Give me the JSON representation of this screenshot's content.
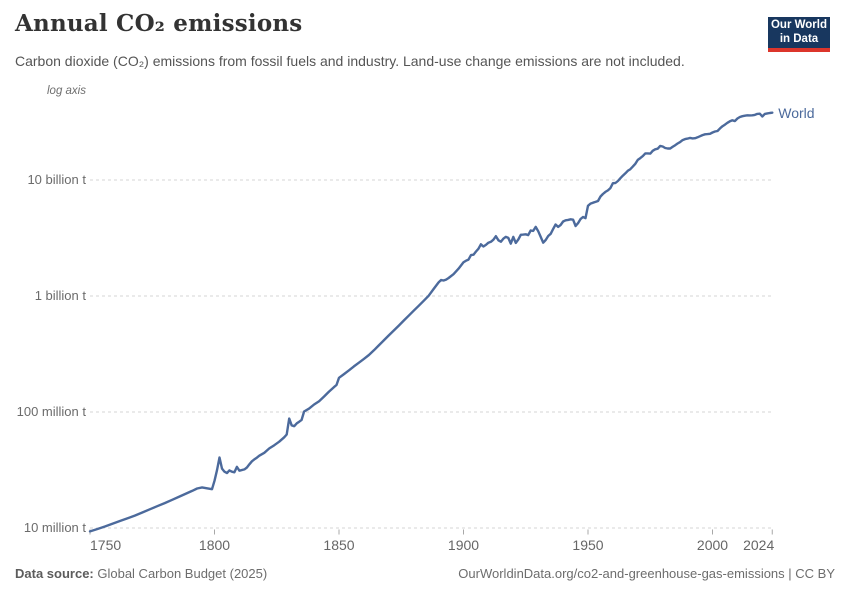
{
  "header": {
    "title": "Annual CO₂ emissions",
    "subtitle": "Carbon dioxide (CO₂) emissions from fossil fuels and industry. Land-use change emissions are not included.",
    "logo": {
      "line1": "Our World",
      "line2": "in Data"
    }
  },
  "chart": {
    "axis_note": "log axis"
  },
  "chart_data": {
    "type": "line",
    "title": "Annual CO₂ emissions",
    "log_scale": true,
    "x_range": [
      1750,
      2024
    ],
    "x_ticks": [
      1750,
      1800,
      1850,
      1900,
      1950,
      2000,
      2024
    ],
    "y_ticks": [
      {
        "value": 10,
        "label": "10 million t"
      },
      {
        "value": 100,
        "label": "100 million t"
      },
      {
        "value": 1000,
        "label": "1 billion t"
      },
      {
        "value": 10000,
        "label": "10 billion t"
      }
    ],
    "values_unit": "million tonnes of CO₂",
    "grid": "dashed horizontal",
    "legend_position": "end-of-line label",
    "series": [
      {
        "name": "World",
        "color": "#4C6A9C",
        "points": [
          [
            1750,
            9.35
          ],
          [
            1753,
            9.8
          ],
          [
            1756,
            10.3
          ],
          [
            1759,
            10.9
          ],
          [
            1762,
            11.5
          ],
          [
            1765,
            12.1
          ],
          [
            1768,
            12.8
          ],
          [
            1771,
            13.6
          ],
          [
            1774,
            14.5
          ],
          [
            1777,
            15.4
          ],
          [
            1780,
            16.4
          ],
          [
            1783,
            17.5
          ],
          [
            1786,
            18.7
          ],
          [
            1789,
            20
          ],
          [
            1791,
            20.9
          ],
          [
            1793,
            21.9
          ],
          [
            1795,
            22.4
          ],
          [
            1797,
            22
          ],
          [
            1799,
            21.6
          ],
          [
            1800,
            25.5
          ],
          [
            1801,
            31.5
          ],
          [
            1802,
            40.5
          ],
          [
            1803,
            32.5
          ],
          [
            1804,
            30.6
          ],
          [
            1805,
            29.8
          ],
          [
            1806,
            31.4
          ],
          [
            1807,
            30.6
          ],
          [
            1808,
            30.2
          ],
          [
            1809,
            33.6
          ],
          [
            1810,
            31.2
          ],
          [
            1812,
            32
          ],
          [
            1813,
            33.2
          ],
          [
            1814,
            35.4
          ],
          [
            1815,
            37.6
          ],
          [
            1816,
            39
          ],
          [
            1817,
            40.4
          ],
          [
            1818,
            42
          ],
          [
            1820,
            44.5
          ],
          [
            1822,
            48.6
          ],
          [
            1824,
            51.7
          ],
          [
            1826,
            55.5
          ],
          [
            1828,
            60.5
          ],
          [
            1829,
            64
          ],
          [
            1830,
            87.8
          ],
          [
            1831,
            76.7
          ],
          [
            1832,
            75.4
          ],
          [
            1833,
            79.7
          ],
          [
            1834,
            82.5
          ],
          [
            1835,
            85.5
          ],
          [
            1836,
            101
          ],
          [
            1838,
            107
          ],
          [
            1840,
            116
          ],
          [
            1842,
            124
          ],
          [
            1844,
            136
          ],
          [
            1846,
            150
          ],
          [
            1848,
            164
          ],
          [
            1849,
            171
          ],
          [
            1850,
            197
          ],
          [
            1852,
            212
          ],
          [
            1854,
            229
          ],
          [
            1856,
            247
          ],
          [
            1858,
            266
          ],
          [
            1860,
            287
          ],
          [
            1862,
            310
          ],
          [
            1864,
            340
          ],
          [
            1866,
            375
          ],
          [
            1868,
            414
          ],
          [
            1870,
            457
          ],
          [
            1872,
            504
          ],
          [
            1874,
            556
          ],
          [
            1876,
            614
          ],
          [
            1878,
            677
          ],
          [
            1880,
            747
          ],
          [
            1882,
            824
          ],
          [
            1884,
            909
          ],
          [
            1886,
            1003
          ],
          [
            1888,
            1150
          ],
          [
            1890,
            1310
          ],
          [
            1891,
            1375
          ],
          [
            1892,
            1360
          ],
          [
            1893,
            1385
          ],
          [
            1894,
            1430
          ],
          [
            1896,
            1540
          ],
          [
            1898,
            1720
          ],
          [
            1900,
            1952
          ],
          [
            1901,
            2015
          ],
          [
            1902,
            2060
          ],
          [
            1903,
            2250
          ],
          [
            1904,
            2270
          ],
          [
            1905,
            2420
          ],
          [
            1906,
            2550
          ],
          [
            1907,
            2790
          ],
          [
            1908,
            2670
          ],
          [
            1909,
            2760
          ],
          [
            1910,
            2880
          ],
          [
            1911,
            2930
          ],
          [
            1912,
            3060
          ],
          [
            1913,
            3280
          ],
          [
            1914,
            3020
          ],
          [
            1915,
            2940
          ],
          [
            1916,
            3120
          ],
          [
            1917,
            3240
          ],
          [
            1918,
            3170
          ],
          [
            1919,
            2830
          ],
          [
            1920,
            3230
          ],
          [
            1921,
            2870
          ],
          [
            1922,
            3070
          ],
          [
            1923,
            3370
          ],
          [
            1924,
            3380
          ],
          [
            1925,
            3400
          ],
          [
            1926,
            3350
          ],
          [
            1927,
            3670
          ],
          [
            1928,
            3640
          ],
          [
            1929,
            3940
          ],
          [
            1930,
            3620
          ],
          [
            1931,
            3230
          ],
          [
            1932,
            2880
          ],
          [
            1933,
            3040
          ],
          [
            1934,
            3290
          ],
          [
            1935,
            3440
          ],
          [
            1936,
            3770
          ],
          [
            1937,
            4130
          ],
          [
            1938,
            3940
          ],
          [
            1939,
            4090
          ],
          [
            1940,
            4390
          ],
          [
            1941,
            4490
          ],
          [
            1942,
            4530
          ],
          [
            1943,
            4580
          ],
          [
            1944,
            4550
          ],
          [
            1945,
            4010
          ],
          [
            1946,
            4240
          ],
          [
            1947,
            4600
          ],
          [
            1948,
            4800
          ],
          [
            1949,
            4690
          ],
          [
            1950,
            5990
          ],
          [
            1951,
            6260
          ],
          [
            1952,
            6370
          ],
          [
            1953,
            6480
          ],
          [
            1954,
            6590
          ],
          [
            1955,
            7210
          ],
          [
            1956,
            7580
          ],
          [
            1957,
            7900
          ],
          [
            1958,
            8130
          ],
          [
            1959,
            8520
          ],
          [
            1960,
            9390
          ],
          [
            1961,
            9420
          ],
          [
            1962,
            9810
          ],
          [
            1963,
            10370
          ],
          [
            1964,
            10910
          ],
          [
            1965,
            11430
          ],
          [
            1966,
            12000
          ],
          [
            1967,
            12380
          ],
          [
            1968,
            13040
          ],
          [
            1969,
            13790
          ],
          [
            1970,
            14900
          ],
          [
            1971,
            15460
          ],
          [
            1972,
            16080
          ],
          [
            1973,
            16950
          ],
          [
            1974,
            16970
          ],
          [
            1975,
            16880
          ],
          [
            1976,
            17850
          ],
          [
            1977,
            18410
          ],
          [
            1978,
            18610
          ],
          [
            1979,
            19660
          ],
          [
            1980,
            19460
          ],
          [
            1981,
            18860
          ],
          [
            1982,
            18680
          ],
          [
            1983,
            18680
          ],
          [
            1984,
            19340
          ],
          [
            1985,
            19960
          ],
          [
            1986,
            20640
          ],
          [
            1987,
            21220
          ],
          [
            1988,
            22080
          ],
          [
            1989,
            22500
          ],
          [
            1990,
            22740
          ],
          [
            1991,
            23050
          ],
          [
            1992,
            22830
          ],
          [
            1993,
            22910
          ],
          [
            1994,
            23320
          ],
          [
            1995,
            23840
          ],
          [
            1996,
            24390
          ],
          [
            1997,
            24790
          ],
          [
            1998,
            24880
          ],
          [
            1999,
            25000
          ],
          [
            2000,
            25650
          ],
          [
            2001,
            26200
          ],
          [
            2002,
            26460
          ],
          [
            2003,
            27840
          ],
          [
            2004,
            29070
          ],
          [
            2005,
            30020
          ],
          [
            2006,
            31110
          ],
          [
            2007,
            32040
          ],
          [
            2008,
            32690
          ],
          [
            2009,
            32170
          ],
          [
            2010,
            33900
          ],
          [
            2011,
            34950
          ],
          [
            2012,
            35470
          ],
          [
            2013,
            35830
          ],
          [
            2014,
            36110
          ],
          [
            2015,
            36020
          ],
          [
            2016,
            36090
          ],
          [
            2017,
            36440
          ],
          [
            2018,
            37110
          ],
          [
            2019,
            37290
          ],
          [
            2020,
            35260
          ],
          [
            2021,
            37120
          ],
          [
            2022,
            37500
          ],
          [
            2023,
            37790
          ],
          [
            2024,
            38000
          ]
        ]
      }
    ]
  },
  "footer": {
    "source_label": "Data source:",
    "source": " Global Carbon Budget (2025)",
    "credit": "OurWorldinData.org/co2-and-greenhouse-gas-emissions | CC BY"
  },
  "colors": {
    "line": "#4C6A9C",
    "grid": "#d6d6d6",
    "tick": "#a8a8a8",
    "logo_bg": "#18375f",
    "logo_accent": "#dc352b"
  }
}
